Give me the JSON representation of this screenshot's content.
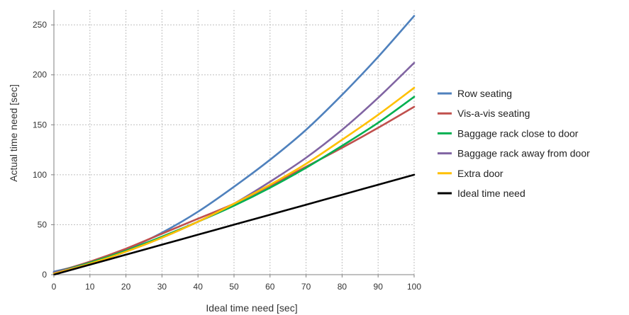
{
  "chart_data": {
    "type": "line",
    "xlabel": "Ideal time need [sec]",
    "ylabel": "Actual time need [sec]",
    "xlim": [
      0,
      100
    ],
    "ylim": [
      0,
      265
    ],
    "xticks": [
      "0",
      "10",
      "20",
      "30",
      "40",
      "50",
      "60",
      "70",
      "80",
      "90",
      "100"
    ],
    "yticks": [
      "0",
      "50",
      "100",
      "150",
      "200",
      "250"
    ],
    "grid": true,
    "legend_position": "right",
    "x": [
      0,
      10,
      20,
      30,
      40,
      50,
      60,
      70,
      80,
      90,
      100
    ],
    "series": [
      {
        "name": "Row seating",
        "color": "#4f81bd",
        "values": [
          3,
          12,
          25,
          42,
          63,
          88,
          115,
          145,
          180,
          218,
          259
        ]
      },
      {
        "name": "Vis-a-vis seating",
        "color": "#c0504d",
        "values": [
          2,
          13,
          26,
          41,
          56,
          71,
          89,
          108,
          127,
          147,
          168
        ]
      },
      {
        "name": "Baggage rack close to door",
        "color": "#00b050",
        "values": [
          2,
          12,
          24,
          38,
          53,
          69,
          87,
          107,
          129,
          152,
          178
        ]
      },
      {
        "name": "Baggage rack away from door",
        "color": "#8064a2",
        "values": [
          2,
          11,
          23,
          37,
          53,
          71,
          93,
          117,
          145,
          177,
          212
        ]
      },
      {
        "name": "Extra door",
        "color": "#ffc000",
        "values": [
          1,
          11,
          23,
          37,
          53,
          71,
          90,
          111,
          135,
          160,
          187
        ]
      },
      {
        "name": "Ideal time need",
        "color": "#000000",
        "values": [
          0,
          10,
          20,
          30,
          40,
          50,
          60,
          70,
          80,
          90,
          100
        ]
      }
    ]
  }
}
